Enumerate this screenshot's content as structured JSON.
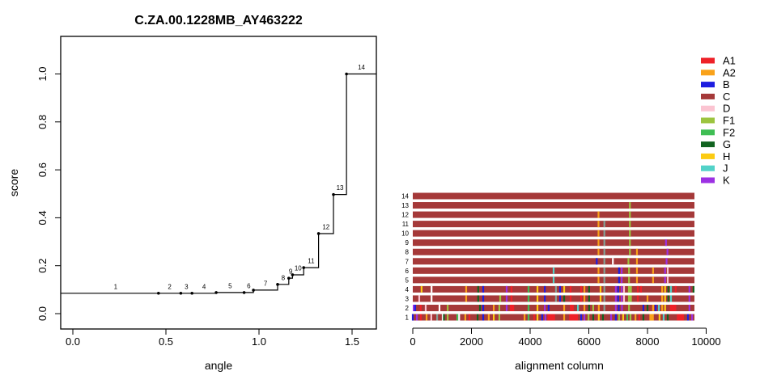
{
  "chart_data": [
    {
      "type": "line",
      "subtype": "step",
      "title": "C.ZA.00.1228MB_AY463222",
      "xlabel": "angle",
      "ylabel": "score",
      "xlim": [
        -0.065,
        1.63
      ],
      "ylim": [
        -0.04,
        1.12
      ],
      "xticks": [
        0.0,
        0.5,
        1.0,
        1.5
      ],
      "xtick_labels": [
        "0.0",
        "0.5",
        "1.0",
        "1.5"
      ],
      "yticks": [
        0.0,
        0.2,
        0.4,
        0.6,
        0.8,
        1.0
      ],
      "ytick_labels": [
        "0.0",
        "0.2",
        "0.4",
        "0.6",
        "0.8",
        "1.0"
      ],
      "grid": "off",
      "line_color": "#000000",
      "points": [
        {
          "label": "1",
          "angle": 0.0,
          "score": 0.085,
          "dot": false
        },
        {
          "label": "2",
          "angle": 0.46,
          "score": 0.085,
          "dot": true
        },
        {
          "label": "3",
          "angle": 0.58,
          "score": 0.085,
          "dot": true
        },
        {
          "label": "4",
          "angle": 0.64,
          "score": 0.085,
          "dot": true
        },
        {
          "label": "5",
          "angle": 0.77,
          "score": 0.088,
          "dot": true
        },
        {
          "label": "6",
          "angle": 0.92,
          "score": 0.088,
          "dot": true
        },
        {
          "label": "7",
          "angle": 0.97,
          "score": 0.098,
          "dot": true
        },
        {
          "label": "8",
          "angle": 1.1,
          "score": 0.122,
          "dot": true
        },
        {
          "label": "9",
          "angle": 1.16,
          "score": 0.148,
          "dot": true
        },
        {
          "label": "10",
          "angle": 1.18,
          "score": 0.162,
          "dot": true
        },
        {
          "label": "11",
          "angle": 1.24,
          "score": 0.192,
          "dot": true
        },
        {
          "label": "12",
          "angle": 1.32,
          "score": 0.334,
          "dot": true
        },
        {
          "label": "13",
          "angle": 1.4,
          "score": 0.497,
          "dot": true
        },
        {
          "label": "14",
          "angle": 1.47,
          "score": 1.0,
          "dot": true
        }
      ]
    },
    {
      "type": "heatmap",
      "subtype": "alignment-strips",
      "xlabel": "alignment column",
      "xticks": [
        0,
        2000,
        4000,
        6000,
        8000,
        10000
      ],
      "xtick_labels": [
        "0",
        "2000",
        "4000",
        "6000",
        "8000",
        "10000"
      ],
      "xlim": [
        0,
        10000
      ],
      "col_max": 9600,
      "base_key": "C",
      "legend_position": "top-right",
      "palette": {
        "A1": "#ee2128",
        "A2": "#f9a21a",
        "B": "#1d1de0",
        "C": "#a53939",
        "D": "#fbc4d1",
        "F1": "#9cc43f",
        "F2": "#3fbe54",
        "G": "#116320",
        "H": "#fccb12",
        "J": "#52d2c8",
        "K": "#9c31e3",
        "GY": "#84a096",
        "W": "#ffffff"
      },
      "legend": [
        {
          "label": "A1",
          "key": "A1"
        },
        {
          "label": "A2",
          "key": "A2"
        },
        {
          "label": "B",
          "key": "B"
        },
        {
          "label": "C",
          "key": "C"
        },
        {
          "label": "D",
          "key": "D"
        },
        {
          "label": "F1",
          "key": "F1"
        },
        {
          "label": "F2",
          "key": "F2"
        },
        {
          "label": "G",
          "key": "G"
        },
        {
          "label": "H",
          "key": "H"
        },
        {
          "label": "J",
          "key": "J"
        },
        {
          "label": "K",
          "key": "K"
        }
      ],
      "rows": [
        {
          "row": "14",
          "ticks": []
        },
        {
          "row": "13",
          "ticks": [
            [
              7400,
              "F1"
            ]
          ]
        },
        {
          "row": "12",
          "ticks": [
            [
              6330,
              "A2"
            ],
            [
              7400,
              "F1"
            ]
          ]
        },
        {
          "row": "11",
          "ticks": [
            [
              6330,
              "A2"
            ],
            [
              6530,
              "GY"
            ],
            [
              7400,
              "F1"
            ]
          ]
        },
        {
          "row": "10",
          "ticks": [
            [
              6330,
              "A2"
            ],
            [
              6530,
              "GY"
            ],
            [
              7400,
              "F1"
            ]
          ]
        },
        {
          "row": "9",
          "ticks": [
            [
              6330,
              "A2"
            ],
            [
              6530,
              "GY"
            ],
            [
              7400,
              "F1"
            ],
            [
              8630,
              "K"
            ]
          ]
        },
        {
          "row": "8",
          "ticks": [
            [
              6330,
              "A2"
            ],
            [
              6530,
              "GY"
            ],
            [
              7400,
              "F1"
            ],
            [
              7640,
              "A2"
            ],
            [
              8680,
              "K"
            ]
          ]
        },
        {
          "row": "7",
          "ticks": [
            [
              6270,
              "B"
            ],
            [
              6530,
              "GY"
            ],
            [
              6820,
              "W"
            ],
            [
              7350,
              "F1"
            ],
            [
              7640,
              "A2"
            ],
            [
              8650,
              "K"
            ]
          ]
        },
        {
          "row": "6",
          "ticks": [
            [
              4800,
              "J"
            ],
            [
              6330,
              "A2"
            ],
            [
              6530,
              "GY"
            ],
            [
              7030,
              "B"
            ],
            [
              7120,
              "K"
            ],
            [
              7370,
              "F1"
            ],
            [
              7640,
              "A2"
            ],
            [
              8190,
              "A2"
            ],
            [
              8600,
              "K"
            ],
            [
              8690,
              "D"
            ]
          ]
        },
        {
          "row": "5",
          "ticks": [
            [
              4800,
              "J"
            ],
            [
              6330,
              "A2"
            ],
            [
              6530,
              "GY"
            ],
            [
              7030,
              "B"
            ],
            [
              7120,
              "K"
            ],
            [
              7370,
              "F1"
            ],
            [
              7640,
              "A2"
            ],
            [
              8190,
              "A2"
            ],
            [
              8600,
              "K"
            ],
            [
              8690,
              "D"
            ]
          ]
        },
        {
          "row": "4",
          "ticks": [
            [
              300,
              "H"
            ],
            [
              640,
              "W"
            ],
            [
              1820,
              "A2"
            ],
            [
              2230,
              "G"
            ],
            [
              2400,
              "B"
            ],
            [
              3200,
              "K"
            ],
            [
              3365,
              "A1"
            ],
            [
              3945,
              "F2"
            ],
            [
              4250,
              "H"
            ],
            [
              4500,
              "B"
            ],
            [
              4880,
              "GY"
            ],
            [
              5020,
              "B"
            ],
            [
              5160,
              "H"
            ],
            [
              5380,
              "A1"
            ],
            [
              5740,
              "A1"
            ],
            [
              5850,
              "A2"
            ],
            [
              6010,
              "G"
            ],
            [
              6400,
              "H"
            ],
            [
              6530,
              "GY"
            ],
            [
              6920,
              "K"
            ],
            [
              7000,
              "B"
            ],
            [
              7120,
              "K"
            ],
            [
              7200,
              "D"
            ],
            [
              7400,
              "F1",
              130
            ],
            [
              7670,
              "A1"
            ],
            [
              7780,
              "A1"
            ],
            [
              8500,
              "A2"
            ],
            [
              8600,
              "H"
            ],
            [
              8710,
              "G"
            ],
            [
              8800,
              "J"
            ],
            [
              8960,
              "A1"
            ],
            [
              9430,
              "K"
            ],
            [
              9570,
              "G"
            ]
          ]
        },
        {
          "row": "3",
          "ticks": [
            [
              220,
              "D"
            ],
            [
              640,
              "W"
            ],
            [
              1820,
              "A2"
            ],
            [
              2230,
              "G"
            ],
            [
              2400,
              "B"
            ],
            [
              2980,
              "F1"
            ],
            [
              3200,
              "K"
            ],
            [
              3365,
              "A1"
            ],
            [
              3945,
              "F2"
            ],
            [
              4250,
              "H"
            ],
            [
              4500,
              "B"
            ],
            [
              4880,
              "GY"
            ],
            [
              5020,
              "B"
            ],
            [
              5160,
              "G"
            ],
            [
              5380,
              "A1"
            ],
            [
              5740,
              "A1"
            ],
            [
              5850,
              "A2"
            ],
            [
              6010,
              "G"
            ],
            [
              6400,
              "H"
            ],
            [
              6530,
              "GY"
            ],
            [
              6920,
              "K"
            ],
            [
              7000,
              "B"
            ],
            [
              7120,
              "K"
            ],
            [
              7200,
              "D"
            ],
            [
              7400,
              "F1",
              130
            ],
            [
              7670,
              "A1"
            ],
            [
              8000,
              "A2"
            ],
            [
              8500,
              "A2"
            ],
            [
              8600,
              "H"
            ],
            [
              8710,
              "G"
            ],
            [
              8800,
              "J"
            ],
            [
              9430,
              "K"
            ]
          ]
        },
        {
          "row": "2",
          "ticks": [
            [
              30,
              "K"
            ],
            [
              80,
              "B"
            ],
            [
              270,
              "A1"
            ],
            [
              440,
              "D"
            ],
            [
              910,
              "W"
            ],
            [
              1190,
              "F1"
            ],
            [
              2290,
              "G"
            ],
            [
              2400,
              "B"
            ],
            [
              2760,
              "A2"
            ],
            [
              2950,
              "F1"
            ],
            [
              3200,
              "K"
            ],
            [
              3380,
              "A1",
              150
            ],
            [
              3945,
              "F2"
            ],
            [
              4250,
              "H"
            ],
            [
              4500,
              "K"
            ],
            [
              4630,
              "B"
            ],
            [
              5160,
              "A2"
            ],
            [
              5420,
              "A1",
              130
            ],
            [
              5630,
              "J"
            ],
            [
              5850,
              "A2"
            ],
            [
              6010,
              "G"
            ],
            [
              6150,
              "F1"
            ],
            [
              6340,
              "A2"
            ],
            [
              6530,
              "GY"
            ],
            [
              6920,
              "K"
            ],
            [
              7020,
              "B"
            ],
            [
              7130,
              "K"
            ],
            [
              7370,
              "F1"
            ],
            [
              7860,
              "B"
            ],
            [
              8000,
              "G"
            ],
            [
              8190,
              "A2"
            ],
            [
              8280,
              "B"
            ],
            [
              8390,
              "J"
            ],
            [
              8500,
              "A2"
            ],
            [
              8600,
              "H"
            ],
            [
              8870,
              "A1",
              220
            ],
            [
              9430,
              "K"
            ]
          ]
        },
        {
          "row": "1",
          "ticks": [
            [
              0,
              "B"
            ],
            [
              140,
              "K"
            ],
            [
              275,
              "A1"
            ],
            [
              470,
              "A2"
            ],
            [
              630,
              "D"
            ],
            [
              830,
              "GY"
            ],
            [
              1020,
              "W"
            ],
            [
              1060,
              "G"
            ],
            [
              1190,
              "F1"
            ],
            [
              1520,
              "F2"
            ],
            [
              1580,
              "W"
            ],
            [
              1790,
              "A2"
            ],
            [
              1930,
              "A1"
            ],
            [
              2210,
              "G"
            ],
            [
              2400,
              "B"
            ],
            [
              2590,
              "A2"
            ],
            [
              2760,
              "H"
            ],
            [
              2950,
              "F1"
            ],
            [
              3810,
              "A2"
            ],
            [
              3945,
              "F2"
            ],
            [
              4140,
              "A1"
            ],
            [
              4250,
              "H"
            ],
            [
              4410,
              "B"
            ],
            [
              4520,
              "K"
            ],
            [
              4720,
              "A1",
              260
            ],
            [
              5160,
              "A2"
            ],
            [
              5480,
              "A1",
              300
            ],
            [
              5740,
              "B"
            ],
            [
              5850,
              "K"
            ],
            [
              5990,
              "F1"
            ],
            [
              6150,
              "G"
            ],
            [
              6340,
              "H"
            ],
            [
              6480,
              "G"
            ],
            [
              6760,
              "K"
            ],
            [
              6920,
              "B"
            ],
            [
              7030,
              "F1"
            ],
            [
              7170,
              "H"
            ],
            [
              7310,
              "F2"
            ],
            [
              7420,
              "F1"
            ],
            [
              7590,
              "A2"
            ],
            [
              7720,
              "A1"
            ],
            [
              7860,
              "G"
            ],
            [
              8140,
              "A2",
              150
            ],
            [
              8410,
              "H"
            ],
            [
              8550,
              "J"
            ],
            [
              8690,
              "G"
            ],
            [
              9120,
              "A1",
              240
            ],
            [
              9380,
              "B"
            ],
            [
              9520,
              "K"
            ]
          ]
        }
      ]
    }
  ]
}
